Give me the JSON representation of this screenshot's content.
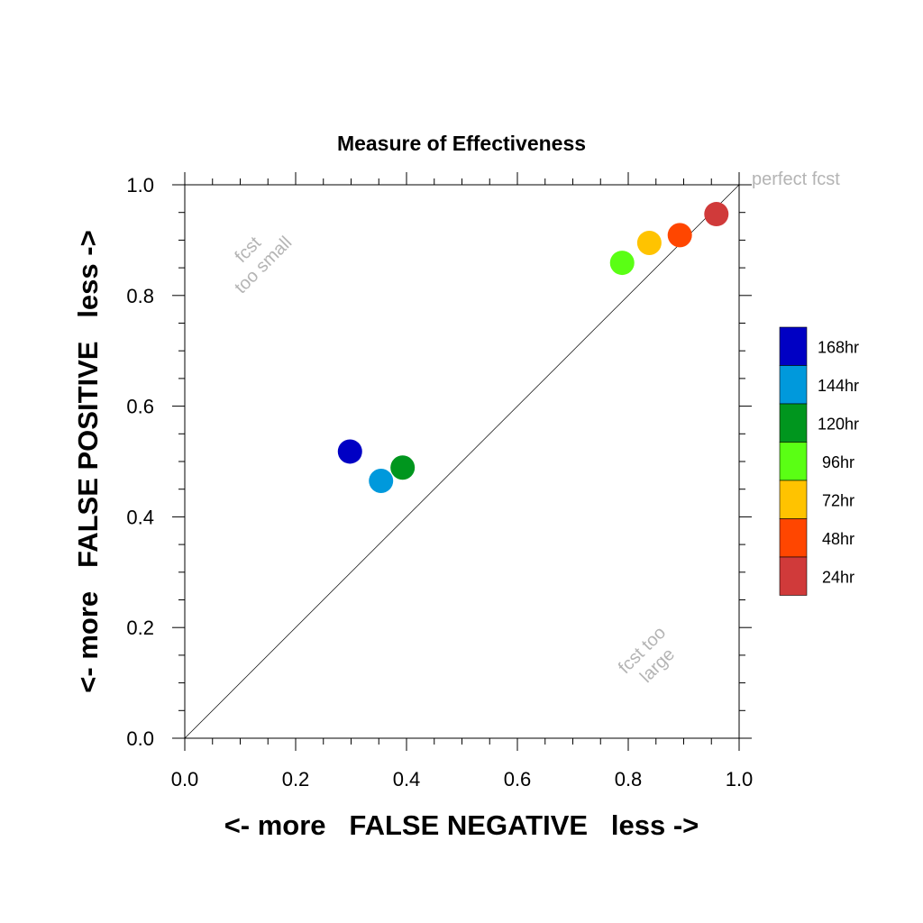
{
  "chart_data": {
    "type": "scatter",
    "title": "Measure of Effectiveness",
    "xlabel": "<- more   FALSE NEGATIVE   less ->",
    "ylabel": "<- more   FALSE POSITIVE   less ->",
    "xlim": [
      0.0,
      1.0
    ],
    "ylim": [
      0.0,
      1.0
    ],
    "xticks": [
      "0.0",
      "0.2",
      "0.4",
      "0.6",
      "0.8",
      "1.0"
    ],
    "yticks": [
      "0.0",
      "0.2",
      "0.4",
      "0.6",
      "0.8",
      "1.0"
    ],
    "grid": false,
    "reference_line": "diagonal y = x",
    "annotations": {
      "perfect": "perfect fcst",
      "too_small_1": "fcst",
      "too_small_2": "too small",
      "too_large_1": "fcst too",
      "too_large_2": "large"
    },
    "legend_position": "right",
    "series": [
      {
        "name": "168hr",
        "color": "#0000c4",
        "x": 0.298,
        "y": 0.518
      },
      {
        "name": "144hr",
        "color": "#0099dc",
        "x": 0.354,
        "y": 0.465
      },
      {
        "name": "120hr",
        "color": "#00961e",
        "x": 0.393,
        "y": 0.489
      },
      {
        "name": "96hr",
        "color": "#5aff14",
        "x": 0.789,
        "y": 0.859
      },
      {
        "name": "72hr",
        "color": "#ffc300",
        "x": 0.838,
        "y": 0.895
      },
      {
        "name": "48hr",
        "color": "#ff4600",
        "x": 0.893,
        "y": 0.909
      },
      {
        "name": "24hr",
        "color": "#d03a3a",
        "x": 0.959,
        "y": 0.947
      }
    ]
  }
}
